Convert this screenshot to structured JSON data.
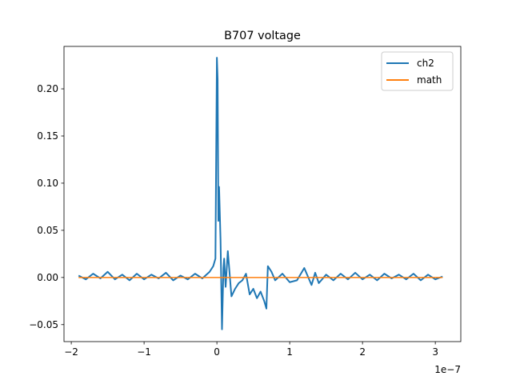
{
  "chart_data": {
    "type": "line",
    "title": "B707 voltage",
    "xlabel": "",
    "ylabel": "",
    "x_offset_label": "1e−7",
    "xlim": [
      -2.1,
      3.35
    ],
    "ylim": [
      -0.068,
      0.245
    ],
    "x_ticks": [
      -2,
      -1,
      0,
      1,
      2,
      3
    ],
    "x_tick_labels": [
      "−2",
      "−1",
      "0",
      "1",
      "2",
      "3"
    ],
    "y_ticks": [
      -0.05,
      0.0,
      0.05,
      0.1,
      0.15,
      0.2
    ],
    "y_tick_labels": [
      "−0.05",
      "0.00",
      "0.05",
      "0.10",
      "0.15",
      "0.20"
    ],
    "grid": false,
    "legend_position": "top-right",
    "series": [
      {
        "name": "ch2",
        "color": "#1f77b4",
        "x": [
          -1.9,
          -1.8,
          -1.7,
          -1.6,
          -1.5,
          -1.4,
          -1.3,
          -1.2,
          -1.1,
          -1.0,
          -0.9,
          -0.8,
          -0.7,
          -0.6,
          -0.5,
          -0.4,
          -0.3,
          -0.2,
          -0.1,
          -0.05,
          -0.02,
          0.0,
          0.01,
          0.02,
          0.03,
          0.05,
          0.07,
          0.09,
          0.1,
          0.12,
          0.15,
          0.2,
          0.25,
          0.3,
          0.35,
          0.4,
          0.45,
          0.5,
          0.55,
          0.6,
          0.65,
          0.68,
          0.7,
          0.75,
          0.8,
          0.9,
          1.0,
          1.1,
          1.2,
          1.3,
          1.35,
          1.4,
          1.5,
          1.6,
          1.7,
          1.8,
          1.9,
          2.0,
          2.1,
          2.2,
          2.3,
          2.4,
          2.5,
          2.6,
          2.7,
          2.8,
          2.9,
          3.0,
          3.1
        ],
        "y": [
          0.002,
          -0.002,
          0.004,
          -0.001,
          0.006,
          -0.002,
          0.003,
          -0.003,
          0.004,
          -0.002,
          0.003,
          -0.001,
          0.005,
          -0.003,
          0.002,
          -0.002,
          0.004,
          -0.001,
          0.006,
          0.012,
          0.02,
          0.233,
          0.21,
          0.06,
          0.096,
          0.04,
          -0.055,
          0.01,
          0.02,
          -0.01,
          0.028,
          -0.02,
          -0.012,
          -0.006,
          -0.003,
          0.004,
          -0.018,
          -0.012,
          -0.022,
          -0.015,
          -0.025,
          -0.033,
          0.012,
          0.006,
          -0.003,
          0.004,
          -0.005,
          -0.003,
          0.01,
          -0.008,
          0.005,
          -0.006,
          0.003,
          -0.003,
          0.004,
          -0.002,
          0.005,
          -0.002,
          0.003,
          -0.003,
          0.004,
          -0.001,
          0.003,
          -0.002,
          0.004,
          -0.003,
          0.003,
          -0.002,
          0.001
        ]
      },
      {
        "name": "math",
        "color": "#ff7f0e",
        "x": [
          -1.9,
          3.1
        ],
        "y": [
          0.0,
          0.0
        ]
      }
    ]
  }
}
